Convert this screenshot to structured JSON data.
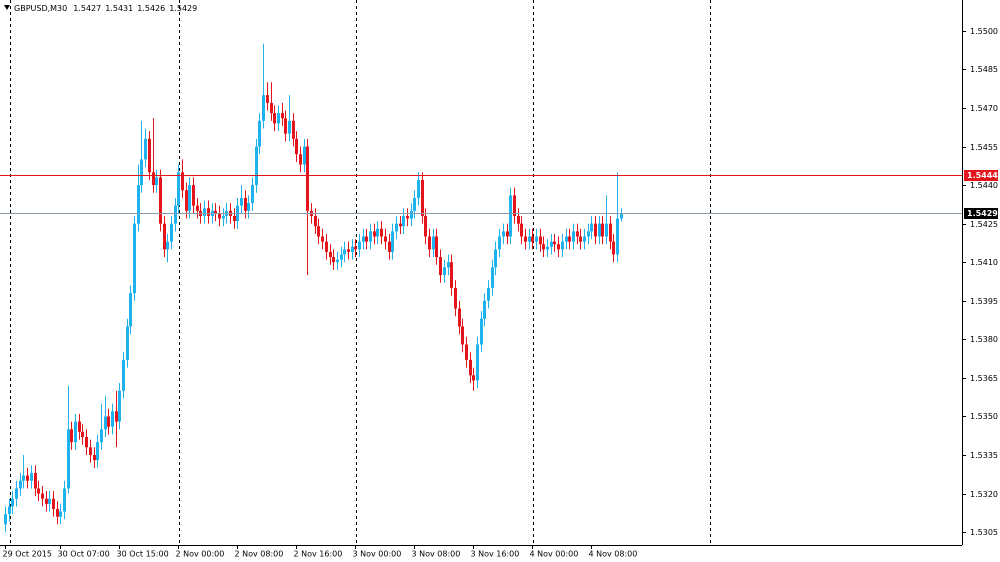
{
  "chart_data": {
    "type": "candlestick",
    "title": "GBPUSD,M30",
    "categories": [
      "29 Oct 2015",
      null,
      null,
      null,
      null,
      null,
      null,
      null,
      null,
      null,
      null,
      null,
      null,
      null,
      null,
      "30 Oct 07:00",
      null,
      null,
      null,
      null,
      null,
      null,
      null,
      null,
      null,
      null,
      null,
      null,
      null,
      null,
      null,
      "30 Oct 15:00",
      null,
      null,
      null,
      null,
      null,
      null,
      null,
      null,
      null,
      null,
      null,
      null,
      null,
      null,
      null,
      "2 Nov 00:00",
      null,
      null,
      null,
      null,
      null,
      null,
      null,
      null,
      null,
      null,
      null,
      null,
      null,
      null,
      null,
      "2 Nov 08:00",
      null,
      null,
      null,
      null,
      null,
      null,
      null,
      null,
      null,
      null,
      null,
      null,
      null,
      null,
      null,
      "2 Nov 16:00",
      null,
      null,
      null,
      null,
      null,
      null,
      null,
      null,
      null,
      null,
      null,
      null,
      null,
      null,
      null,
      "3 Nov 00:00",
      null,
      null,
      null,
      null,
      null,
      null,
      null,
      null,
      null,
      null,
      null,
      null,
      null,
      null,
      null,
      "3 Nov 08:00",
      null,
      null,
      null,
      null,
      null,
      null,
      null,
      null,
      null,
      null,
      null,
      null,
      null,
      null,
      null,
      "3 Nov 16:00",
      null,
      null,
      null,
      null,
      null,
      null,
      null,
      null,
      null,
      null,
      null,
      null,
      null,
      null,
      null,
      "4 Nov 00:00",
      null,
      null,
      null,
      null,
      null,
      null,
      null,
      null,
      null,
      null,
      null,
      null,
      null,
      null,
      null,
      "4 Nov 08:00",
      null,
      null,
      null,
      null,
      null,
      null,
      null,
      null
    ],
    "open": [
      1.5308,
      1.5312,
      1.5315,
      1.5318,
      1.5322,
      1.5325,
      1.5327,
      1.5325,
      1.5328,
      1.5322,
      1.532,
      1.5318,
      1.5316,
      1.5318,
      1.5314,
      1.5311,
      1.5313,
      1.5322,
      1.5345,
      1.534,
      1.5348,
      1.5344,
      1.5342,
      1.5338,
      1.5335,
      1.5333,
      1.534,
      1.5345,
      1.535,
      1.5346,
      1.5352,
      1.5348,
      1.536,
      1.5372,
      1.5385,
      1.5398,
      1.5425,
      1.544,
      1.545,
      1.5458,
      1.5445,
      1.544,
      1.5443,
      1.5425,
      1.5415,
      1.5418,
      1.5425,
      1.5432,
      1.5445,
      1.5438,
      1.543,
      1.544,
      1.5432,
      1.543,
      1.5428,
      1.5431,
      1.5428,
      1.543,
      1.5429,
      1.5427,
      1.5428,
      1.543,
      1.5428,
      1.5426,
      1.5432,
      1.5435,
      1.543,
      1.5433,
      1.544,
      1.5455,
      1.5465,
      1.5475,
      1.5472,
      1.5468,
      1.5464,
      1.5468,
      1.5466,
      1.546,
      1.5465,
      1.5458,
      1.5452,
      1.5448,
      1.5455,
      1.543,
      1.5428,
      1.5424,
      1.542,
      1.5418,
      1.5414,
      1.5412,
      1.541,
      1.5411,
      1.5413,
      1.5415,
      1.5414,
      1.5416,
      1.5415,
      1.5418,
      1.542,
      1.5418,
      1.5422,
      1.542,
      1.5423,
      1.542,
      1.5418,
      1.5414,
      1.5422,
      1.5425,
      1.5424,
      1.5428,
      1.5427,
      1.543,
      1.5435,
      1.5442,
      1.5428,
      1.542,
      1.5415,
      1.542,
      1.5412,
      1.5405,
      1.5408,
      1.541,
      1.54,
      1.5392,
      1.5385,
      1.5378,
      1.5372,
      1.5366,
      1.5364,
      1.5378,
      1.5388,
      1.5395,
      1.54,
      1.5408,
      1.5415,
      1.542,
      1.5422,
      1.542,
      1.5436,
      1.5428,
      1.5425,
      1.542,
      1.5418,
      1.542,
      1.5418,
      1.542,
      1.5417,
      1.5415,
      1.5416,
      1.5418,
      1.5417,
      1.5415,
      1.5418,
      1.542,
      1.5418,
      1.5422,
      1.542,
      1.5418,
      1.542,
      1.5422,
      1.5425,
      1.542,
      1.5425,
      1.542,
      1.5425,
      1.5418,
      1.5413,
      1.5427
    ],
    "high": [
      1.5315,
      1.5318,
      1.5321,
      1.5325,
      1.5328,
      1.5335,
      1.533,
      1.5331,
      1.5331,
      1.5325,
      1.5323,
      1.5321,
      1.5321,
      1.5321,
      1.5317,
      1.5316,
      1.5325,
      1.5362,
      1.5348,
      1.5351,
      1.5351,
      1.5347,
      1.5345,
      1.5341,
      1.5338,
      1.5343,
      1.5355,
      1.5358,
      1.5353,
      1.5355,
      1.536,
      1.5363,
      1.5375,
      1.5388,
      1.5401,
      1.5428,
      1.5448,
      1.5465,
      1.5462,
      1.5461,
      1.5466,
      1.5446,
      1.5446,
      1.5428,
      1.5421,
      1.5428,
      1.5435,
      1.5448,
      1.545,
      1.5441,
      1.5443,
      1.5443,
      1.5435,
      1.5433,
      1.5434,
      1.5434,
      1.5433,
      1.5433,
      1.5432,
      1.5431,
      1.5433,
      1.5433,
      1.5431,
      1.5435,
      1.544,
      1.5438,
      1.5436,
      1.5443,
      1.5458,
      1.5468,
      1.5495,
      1.548,
      1.548,
      1.5471,
      1.5471,
      1.5472,
      1.5469,
      1.5475,
      1.5468,
      1.5461,
      1.5455,
      1.5458,
      1.5458,
      1.5433,
      1.5431,
      1.5427,
      1.5423,
      1.5421,
      1.5417,
      1.5415,
      1.5414,
      1.5416,
      1.5418,
      1.5418,
      1.5419,
      1.5419,
      1.5421,
      1.5423,
      1.5423,
      1.5425,
      1.5425,
      1.5426,
      1.5426,
      1.5423,
      1.5421,
      1.5425,
      1.5428,
      1.5428,
      1.5431,
      1.5431,
      1.5433,
      1.5438,
      1.5445,
      1.5445,
      1.5431,
      1.5423,
      1.5423,
      1.5423,
      1.5415,
      1.5411,
      1.5413,
      1.5413,
      1.5403,
      1.5395,
      1.5388,
      1.5381,
      1.5375,
      1.5369,
      1.5381,
      1.5391,
      1.5398,
      1.5403,
      1.5411,
      1.5418,
      1.5423,
      1.5425,
      1.5425,
      1.5439,
      1.5439,
      1.5431,
      1.5428,
      1.5423,
      1.5423,
      1.5423,
      1.5423,
      1.5423,
      1.542,
      1.5419,
      1.5421,
      1.5421,
      1.542,
      1.5421,
      1.5423,
      1.5423,
      1.5425,
      1.5425,
      1.5423,
      1.5423,
      1.5425,
      1.5428,
      1.5428,
      1.5428,
      1.5428,
      1.5436,
      1.5428,
      1.5421,
      1.5445,
      1.5431
    ],
    "low": [
      1.5305,
      1.5309,
      1.5312,
      1.5315,
      1.5319,
      1.5322,
      1.5322,
      1.5322,
      1.5319,
      1.5317,
      1.5315,
      1.5313,
      1.5313,
      1.5311,
      1.5308,
      1.5308,
      1.531,
      1.532,
      1.5337,
      1.5337,
      1.5341,
      1.5339,
      1.5335,
      1.5332,
      1.533,
      1.533,
      1.5337,
      1.5342,
      1.5343,
      1.5343,
      1.5338,
      1.5345,
      1.5357,
      1.5369,
      1.5382,
      1.5395,
      1.5422,
      1.5437,
      1.5447,
      1.5442,
      1.5437,
      1.5437,
      1.5422,
      1.5412,
      1.541,
      1.5415,
      1.5422,
      1.5429,
      1.5435,
      1.5427,
      1.5427,
      1.5429,
      1.5427,
      1.5425,
      1.5425,
      1.5425,
      1.5425,
      1.5426,
      1.5424,
      1.5424,
      1.5425,
      1.5425,
      1.5423,
      1.5423,
      1.5429,
      1.5427,
      1.5427,
      1.543,
      1.5437,
      1.5452,
      1.5462,
      1.5469,
      1.5465,
      1.5461,
      1.5461,
      1.5463,
      1.5457,
      1.5457,
      1.5455,
      1.5449,
      1.5445,
      1.5445,
      1.5405,
      1.5425,
      1.5421,
      1.5417,
      1.5415,
      1.5411,
      1.5409,
      1.5407,
      1.5407,
      1.5408,
      1.541,
      1.5411,
      1.5411,
      1.5412,
      1.5412,
      1.5415,
      1.5415,
      1.5415,
      1.5417,
      1.5417,
      1.5417,
      1.5415,
      1.5411,
      1.5411,
      1.5419,
      1.5421,
      1.5421,
      1.5424,
      1.5424,
      1.5427,
      1.5432,
      1.5425,
      1.5417,
      1.5412,
      1.5412,
      1.5409,
      1.5402,
      1.5402,
      1.5405,
      1.5397,
      1.5389,
      1.5382,
      1.5375,
      1.5369,
      1.5363,
      1.536,
      1.5361,
      1.5375,
      1.5385,
      1.5392,
      1.5397,
      1.5405,
      1.5412,
      1.5417,
      1.5417,
      1.5417,
      1.5425,
      1.5422,
      1.5417,
      1.5415,
      1.5415,
      1.5415,
      1.5415,
      1.5414,
      1.5412,
      1.5412,
      1.5413,
      1.5414,
      1.5412,
      1.5412,
      1.5415,
      1.5415,
      1.5415,
      1.5417,
      1.5415,
      1.5415,
      1.5417,
      1.5419,
      1.5417,
      1.5417,
      1.5417,
      1.5417,
      1.5415,
      1.541,
      1.541,
      1.5426
    ],
    "close": [
      1.5312,
      1.5315,
      1.5318,
      1.5322,
      1.5325,
      1.5327,
      1.5325,
      1.5328,
      1.5322,
      1.532,
      1.5318,
      1.5316,
      1.5318,
      1.5314,
      1.5311,
      1.5313,
      1.5322,
      1.5345,
      1.534,
      1.5348,
      1.5344,
      1.5342,
      1.5338,
      1.5335,
      1.5333,
      1.534,
      1.5345,
      1.535,
      1.5346,
      1.5352,
      1.5348,
      1.536,
      1.5372,
      1.5385,
      1.5398,
      1.5425,
      1.544,
      1.545,
      1.5458,
      1.5445,
      1.544,
      1.5443,
      1.5425,
      1.5415,
      1.5418,
      1.5425,
      1.5432,
      1.5445,
      1.5438,
      1.543,
      1.544,
      1.5432,
      1.543,
      1.5428,
      1.5431,
      1.5428,
      1.543,
      1.5429,
      1.5427,
      1.5428,
      1.543,
      1.5428,
      1.5426,
      1.5432,
      1.5435,
      1.543,
      1.5433,
      1.544,
      1.5455,
      1.5465,
      1.5475,
      1.5472,
      1.5468,
      1.5464,
      1.5468,
      1.5466,
      1.546,
      1.5465,
      1.5458,
      1.5452,
      1.5448,
      1.5455,
      1.543,
      1.5428,
      1.5424,
      1.542,
      1.5418,
      1.5414,
      1.5412,
      1.541,
      1.5411,
      1.5413,
      1.5415,
      1.5414,
      1.5416,
      1.5415,
      1.5418,
      1.542,
      1.5418,
      1.5422,
      1.542,
      1.5423,
      1.542,
      1.5418,
      1.5414,
      1.5422,
      1.5425,
      1.5424,
      1.5428,
      1.5427,
      1.543,
      1.5435,
      1.5442,
      1.5428,
      1.542,
      1.5415,
      1.542,
      1.5412,
      1.5405,
      1.5408,
      1.541,
      1.54,
      1.5392,
      1.5385,
      1.5378,
      1.5372,
      1.5366,
      1.5364,
      1.5378,
      1.5388,
      1.5395,
      1.54,
      1.5408,
      1.5415,
      1.542,
      1.5422,
      1.542,
      1.5436,
      1.5428,
      1.5425,
      1.542,
      1.5418,
      1.542,
      1.5418,
      1.542,
      1.5417,
      1.5415,
      1.5416,
      1.5418,
      1.5417,
      1.5415,
      1.5418,
      1.542,
      1.5418,
      1.5422,
      1.542,
      1.5418,
      1.542,
      1.5422,
      1.5425,
      1.542,
      1.5425,
      1.542,
      1.5425,
      1.5418,
      1.5413,
      1.5427,
      1.5429
    ],
    "up_color": "#1eb2ee",
    "down_color": "#e3141c",
    "doji_color": "#000000",
    "ylim": [
      1.53,
      1.5512
    ],
    "yticks": [
      1.5305,
      {
        "value": 1.532,
        "label": "1.5320"
      },
      1.5335,
      {
        "value": 1.535,
        "label": "1.5350"
      },
      1.5365,
      {
        "value": 1.538,
        "label": "1.5380"
      },
      1.5395,
      {
        "value": 1.541,
        "label": "1.5410"
      },
      1.5425,
      {
        "value": 1.544,
        "label": "1.5440"
      },
      1.5455,
      {
        "value": 1.547,
        "label": "1.5470"
      },
      1.5485,
      {
        "value": 1.55,
        "label": "1.5500"
      }
    ],
    "price_lines": [
      {
        "value": 1.5444,
        "color": "#e3141c"
      },
      {
        "value": 1.5429,
        "color": "#000000"
      }
    ]
  }
}
